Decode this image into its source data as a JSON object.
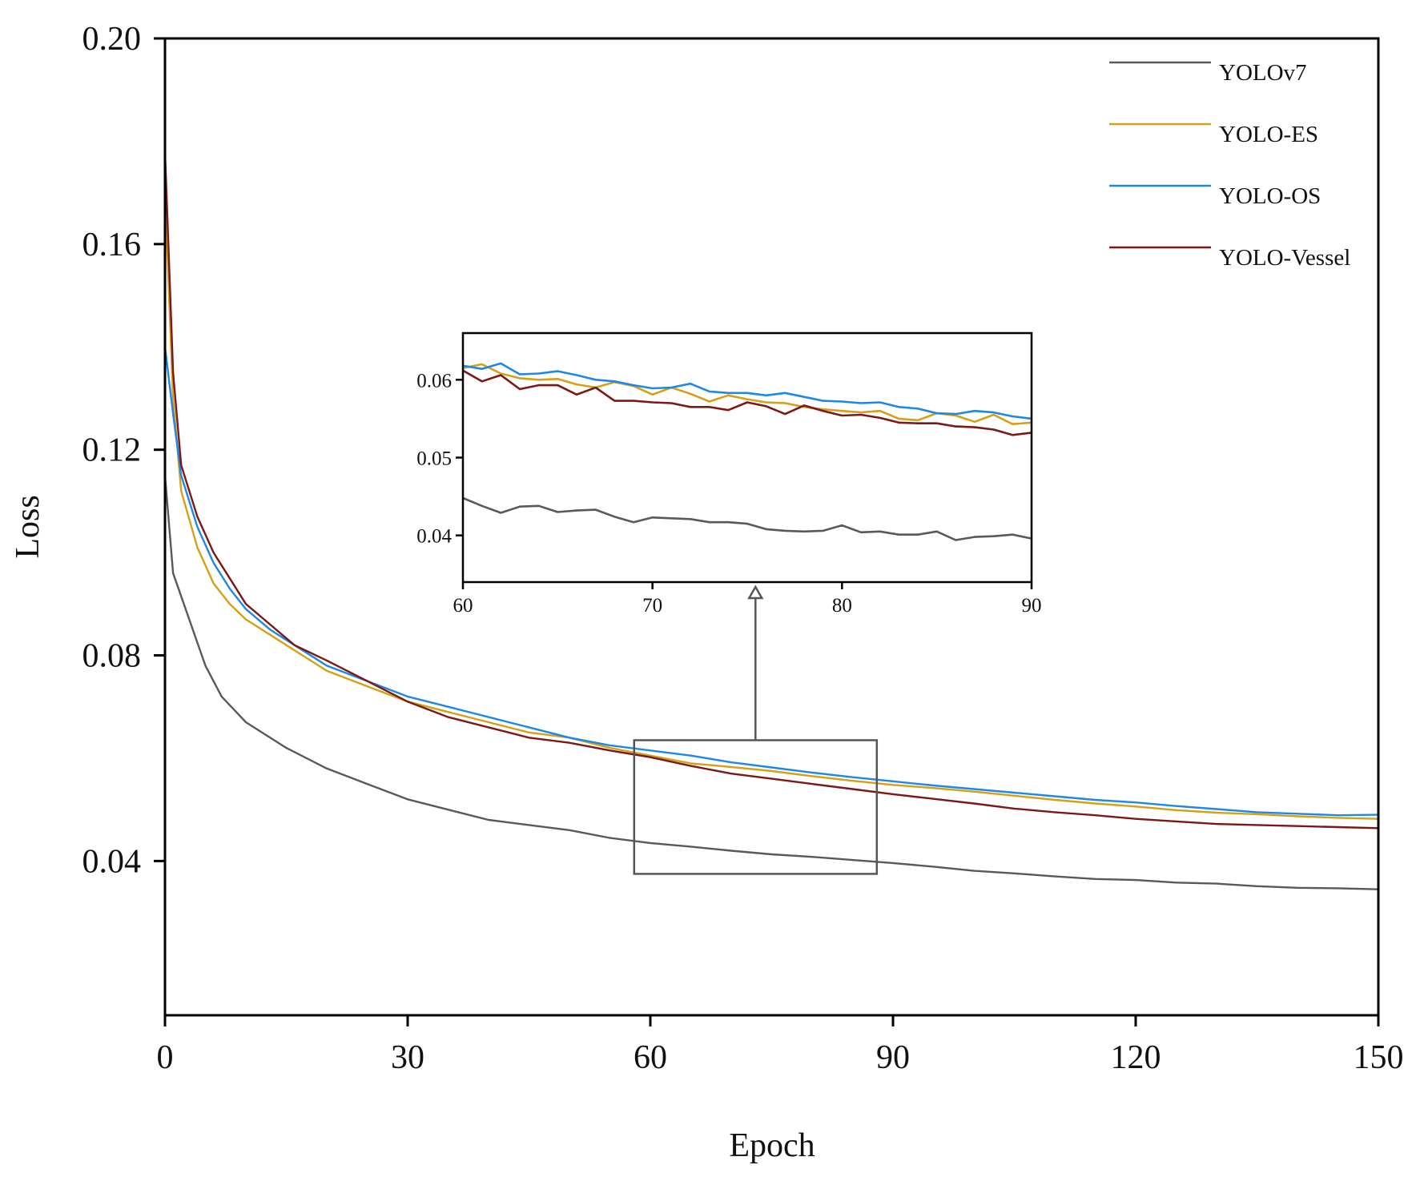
{
  "chart_data": {
    "type": "line",
    "main": {
      "xlabel": "Epoch",
      "ylabel": "Loss",
      "xlim": [
        0,
        150
      ],
      "ylim": [
        0.01,
        0.2
      ],
      "xticks": [
        0,
        30,
        60,
        90,
        120,
        150
      ],
      "xtick_labels": [
        "0",
        "30",
        "60",
        "90",
        "120",
        "150"
      ],
      "yticks": [
        0.04,
        0.08,
        0.12,
        0.16,
        0.2
      ],
      "ytick_labels": [
        "0.04",
        "0.08",
        "0.12",
        "0.16",
        "0.20"
      ],
      "legend_position": "top-right"
    },
    "series": [
      {
        "name": "YOLOv7",
        "color": "#595959",
        "points": [
          [
            0,
            0.115
          ],
          [
            1,
            0.096
          ],
          [
            3,
            0.087
          ],
          [
            5,
            0.078
          ],
          [
            7,
            0.072
          ],
          [
            10,
            0.067
          ],
          [
            15,
            0.062
          ],
          [
            20,
            0.058
          ],
          [
            25,
            0.055
          ],
          [
            30,
            0.052
          ],
          [
            35,
            0.05
          ],
          [
            40,
            0.048
          ],
          [
            45,
            0.047
          ],
          [
            50,
            0.046
          ],
          [
            55,
            0.0445
          ],
          [
            60,
            0.0435
          ],
          [
            65,
            0.0428
          ],
          [
            70,
            0.042
          ],
          [
            75,
            0.0413
          ],
          [
            80,
            0.0408
          ],
          [
            85,
            0.0402
          ],
          [
            90,
            0.0396
          ],
          [
            95,
            0.0389
          ],
          [
            100,
            0.0381
          ],
          [
            105,
            0.0376
          ],
          [
            110,
            0.037
          ],
          [
            115,
            0.0365
          ],
          [
            120,
            0.0363
          ],
          [
            125,
            0.0358
          ],
          [
            130,
            0.0356
          ],
          [
            135,
            0.0351
          ],
          [
            140,
            0.0348
          ],
          [
            145,
            0.0347
          ],
          [
            150,
            0.0345
          ]
        ]
      },
      {
        "name": "YOLO-ES",
        "color": "#D4A017",
        "points": [
          [
            0,
            0.17
          ],
          [
            1,
            0.13
          ],
          [
            2,
            0.112
          ],
          [
            4,
            0.101
          ],
          [
            6,
            0.094
          ],
          [
            8,
            0.09
          ],
          [
            10,
            0.087
          ],
          [
            13,
            0.084
          ],
          [
            16,
            0.081
          ],
          [
            20,
            0.077
          ],
          [
            25,
            0.074
          ],
          [
            30,
            0.071
          ],
          [
            35,
            0.069
          ],
          [
            40,
            0.067
          ],
          [
            45,
            0.065
          ],
          [
            50,
            0.064
          ],
          [
            55,
            0.062
          ],
          [
            60,
            0.0605
          ],
          [
            65,
            0.059
          ],
          [
            70,
            0.0583
          ],
          [
            75,
            0.0575
          ],
          [
            80,
            0.0565
          ],
          [
            85,
            0.0556
          ],
          [
            90,
            0.0548
          ],
          [
            95,
            0.0542
          ],
          [
            100,
            0.0535
          ],
          [
            105,
            0.0527
          ],
          [
            110,
            0.0519
          ],
          [
            115,
            0.0512
          ],
          [
            120,
            0.0506
          ],
          [
            125,
            0.0499
          ],
          [
            130,
            0.0494
          ],
          [
            135,
            0.0491
          ],
          [
            140,
            0.0487
          ],
          [
            145,
            0.0484
          ],
          [
            150,
            0.0482
          ]
        ]
      },
      {
        "name": "YOLO-OS",
        "color": "#1E88E5",
        "points": [
          [
            0,
            0.14
          ],
          [
            1,
            0.127
          ],
          [
            2,
            0.115
          ],
          [
            4,
            0.105
          ],
          [
            6,
            0.098
          ],
          [
            8,
            0.093
          ],
          [
            10,
            0.089
          ],
          [
            13,
            0.085
          ],
          [
            16,
            0.082
          ],
          [
            20,
            0.078
          ],
          [
            25,
            0.075
          ],
          [
            30,
            0.072
          ],
          [
            35,
            0.07
          ],
          [
            40,
            0.068
          ],
          [
            45,
            0.066
          ],
          [
            50,
            0.064
          ],
          [
            55,
            0.0625
          ],
          [
            60,
            0.0615
          ],
          [
            65,
            0.0605
          ],
          [
            70,
            0.0592
          ],
          [
            75,
            0.0582
          ],
          [
            80,
            0.0572
          ],
          [
            85,
            0.0563
          ],
          [
            90,
            0.0555
          ],
          [
            95,
            0.0547
          ],
          [
            100,
            0.054
          ],
          [
            105,
            0.0533
          ],
          [
            110,
            0.0526
          ],
          [
            115,
            0.0519
          ],
          [
            120,
            0.0514
          ],
          [
            125,
            0.0507
          ],
          [
            130,
            0.0501
          ],
          [
            135,
            0.0495
          ],
          [
            140,
            0.0492
          ],
          [
            145,
            0.0489
          ],
          [
            150,
            0.049
          ]
        ]
      },
      {
        "name": "YOLO-Vessel",
        "color": "#7B1818",
        "points": [
          [
            0,
            0.178
          ],
          [
            1,
            0.135
          ],
          [
            2,
            0.117
          ],
          [
            4,
            0.107
          ],
          [
            6,
            0.1
          ],
          [
            8,
            0.095
          ],
          [
            10,
            0.09
          ],
          [
            13,
            0.086
          ],
          [
            16,
            0.082
          ],
          [
            20,
            0.079
          ],
          [
            25,
            0.075
          ],
          [
            30,
            0.071
          ],
          [
            35,
            0.068
          ],
          [
            40,
            0.066
          ],
          [
            45,
            0.064
          ],
          [
            50,
            0.063
          ],
          [
            55,
            0.0615
          ],
          [
            60,
            0.0602
          ],
          [
            65,
            0.0585
          ],
          [
            70,
            0.057
          ],
          [
            75,
            0.056
          ],
          [
            80,
            0.055
          ],
          [
            85,
            0.054
          ],
          [
            90,
            0.053
          ],
          [
            95,
            0.0521
          ],
          [
            100,
            0.0512
          ],
          [
            105,
            0.0502
          ],
          [
            110,
            0.0495
          ],
          [
            115,
            0.0489
          ],
          [
            120,
            0.0482
          ],
          [
            125,
            0.0477
          ],
          [
            130,
            0.0472
          ],
          [
            135,
            0.047
          ],
          [
            140,
            0.0468
          ],
          [
            145,
            0.0466
          ],
          [
            150,
            0.0464
          ]
        ]
      }
    ],
    "inset": {
      "xlim": [
        60,
        90
      ],
      "ylim": [
        0.034,
        0.066
      ],
      "xticks": [
        60,
        70,
        80,
        90
      ],
      "xtick_labels": [
        "60",
        "70",
        "80",
        "90"
      ],
      "yticks": [
        0.04,
        0.05,
        0.06
      ],
      "ytick_labels": [
        "0.04",
        "0.05",
        "0.06"
      ],
      "zoom_region": {
        "x": [
          58,
          88
        ],
        "y": [
          0.0375,
          0.0635
        ]
      },
      "series": [
        {
          "name": "YOLOv7",
          "points": [
            [
              60,
              0.0448
            ],
            [
              61,
              0.0438
            ],
            [
              62,
              0.0429
            ],
            [
              63,
              0.0437
            ],
            [
              64,
              0.0438
            ],
            [
              65,
              0.043
            ],
            [
              66,
              0.0432
            ],
            [
              67,
              0.0433
            ],
            [
              68,
              0.0424
            ],
            [
              69,
              0.0417
            ],
            [
              70,
              0.0423
            ],
            [
              71,
              0.0422
            ],
            [
              72,
              0.0421
            ],
            [
              73,
              0.0417
            ],
            [
              74,
              0.0417
            ],
            [
              75,
              0.0415
            ],
            [
              76,
              0.0408
            ],
            [
              77,
              0.0406
            ],
            [
              78,
              0.0405
            ],
            [
              79,
              0.0406
            ],
            [
              80,
              0.0413
            ],
            [
              81,
              0.0404
            ],
            [
              82,
              0.0405
            ],
            [
              83,
              0.0401
            ],
            [
              84,
              0.0401
            ],
            [
              85,
              0.0405
            ],
            [
              86,
              0.0394
            ],
            [
              87,
              0.0398
            ],
            [
              88,
              0.0399
            ],
            [
              89,
              0.0401
            ],
            [
              90,
              0.0396
            ]
          ]
        },
        {
          "name": "YOLO-ES",
          "points": [
            [
              60,
              0.0615
            ],
            [
              61,
              0.062
            ],
            [
              62,
              0.0608
            ],
            [
              63,
              0.0602
            ],
            [
              64,
              0.06
            ],
            [
              65,
              0.0601
            ],
            [
              66,
              0.0594
            ],
            [
              67,
              0.059
            ],
            [
              68,
              0.0597
            ],
            [
              69,
              0.0592
            ],
            [
              70,
              0.0581
            ],
            [
              71,
              0.059
            ],
            [
              72,
              0.0582
            ],
            [
              73,
              0.0572
            ],
            [
              74,
              0.058
            ],
            [
              75,
              0.0575
            ],
            [
              76,
              0.0571
            ],
            [
              77,
              0.057
            ],
            [
              78,
              0.0565
            ],
            [
              79,
              0.0562
            ],
            [
              80,
              0.056
            ],
            [
              81,
              0.0558
            ],
            [
              82,
              0.056
            ],
            [
              83,
              0.055
            ],
            [
              84,
              0.0548
            ],
            [
              85,
              0.0557
            ],
            [
              86,
              0.0554
            ],
            [
              87,
              0.0546
            ],
            [
              88,
              0.0555
            ],
            [
              89,
              0.0543
            ],
            [
              90,
              0.0545
            ]
          ]
        },
        {
          "name": "YOLO-OS",
          "points": [
            [
              60,
              0.0618
            ],
            [
              61,
              0.0614
            ],
            [
              62,
              0.0621
            ],
            [
              63,
              0.0607
            ],
            [
              64,
              0.0608
            ],
            [
              65,
              0.0611
            ],
            [
              66,
              0.0606
            ],
            [
              67,
              0.06
            ],
            [
              68,
              0.0598
            ],
            [
              69,
              0.0593
            ],
            [
              70,
              0.0589
            ],
            [
              71,
              0.059
            ],
            [
              72,
              0.0595
            ],
            [
              73,
              0.0585
            ],
            [
              74,
              0.0583
            ],
            [
              75,
              0.0583
            ],
            [
              76,
              0.058
            ],
            [
              77,
              0.0583
            ],
            [
              78,
              0.0578
            ],
            [
              79,
              0.0573
            ],
            [
              80,
              0.0572
            ],
            [
              81,
              0.057
            ],
            [
              82,
              0.0571
            ],
            [
              83,
              0.0565
            ],
            [
              84,
              0.0563
            ],
            [
              85,
              0.0557
            ],
            [
              86,
              0.0556
            ],
            [
              87,
              0.056
            ],
            [
              88,
              0.0558
            ],
            [
              89,
              0.0553
            ],
            [
              90,
              0.055
            ]
          ]
        },
        {
          "name": "YOLO-Vessel",
          "points": [
            [
              60,
              0.0612
            ],
            [
              61,
              0.0598
            ],
            [
              62,
              0.0606
            ],
            [
              63,
              0.0588
            ],
            [
              64,
              0.0593
            ],
            [
              65,
              0.0593
            ],
            [
              66,
              0.0581
            ],
            [
              67,
              0.059
            ],
            [
              68,
              0.0573
            ],
            [
              69,
              0.0573
            ],
            [
              70,
              0.0571
            ],
            [
              71,
              0.057
            ],
            [
              72,
              0.0565
            ],
            [
              73,
              0.0565
            ],
            [
              74,
              0.0561
            ],
            [
              75,
              0.0571
            ],
            [
              76,
              0.0566
            ],
            [
              77,
              0.0556
            ],
            [
              78,
              0.0567
            ],
            [
              79,
              0.056
            ],
            [
              80,
              0.0554
            ],
            [
              81,
              0.0555
            ],
            [
              82,
              0.0551
            ],
            [
              83,
              0.0545
            ],
            [
              84,
              0.0544
            ],
            [
              85,
              0.0544
            ],
            [
              86,
              0.054
            ],
            [
              87,
              0.0539
            ],
            [
              88,
              0.0536
            ],
            [
              89,
              0.0529
            ],
            [
              90,
              0.0532
            ]
          ]
        }
      ]
    }
  }
}
